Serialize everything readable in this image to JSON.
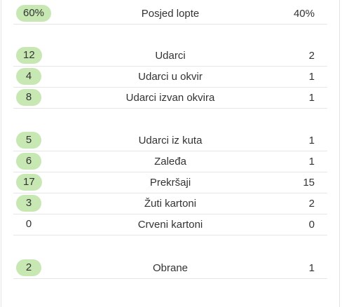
{
  "stats": {
    "groups": [
      {
        "rows": [
          {
            "home": "60%",
            "label": "Posjed lopte",
            "away": "40%",
            "home_highlight": true
          }
        ]
      },
      {
        "rows": [
          {
            "home": "12",
            "label": "Udarci",
            "away": "2",
            "home_highlight": true
          },
          {
            "home": "4",
            "label": "Udarci u okvir",
            "away": "1",
            "home_highlight": true
          },
          {
            "home": "8",
            "label": "Udarci izvan okvira",
            "away": "1",
            "home_highlight": true
          }
        ]
      },
      {
        "rows": [
          {
            "home": "5",
            "label": "Udarci iz kuta",
            "away": "1",
            "home_highlight": true
          },
          {
            "home": "6",
            "label": "Zaleđa",
            "away": "1",
            "home_highlight": true
          },
          {
            "home": "17",
            "label": "Prekršaji",
            "away": "15",
            "home_highlight": true
          },
          {
            "home": "3",
            "label": "Žuti kartoni",
            "away": "2",
            "home_highlight": true
          },
          {
            "home": "0",
            "label": "Crveni kartoni",
            "away": "0",
            "home_highlight": false
          }
        ]
      },
      {
        "rows": [
          {
            "home": "2",
            "label": "Obrane",
            "away": "1",
            "home_highlight": true
          }
        ]
      }
    ]
  },
  "colors": {
    "highlight_pill": "#c7e8b3",
    "divider": "#e6e6e6",
    "text": "#333333"
  }
}
